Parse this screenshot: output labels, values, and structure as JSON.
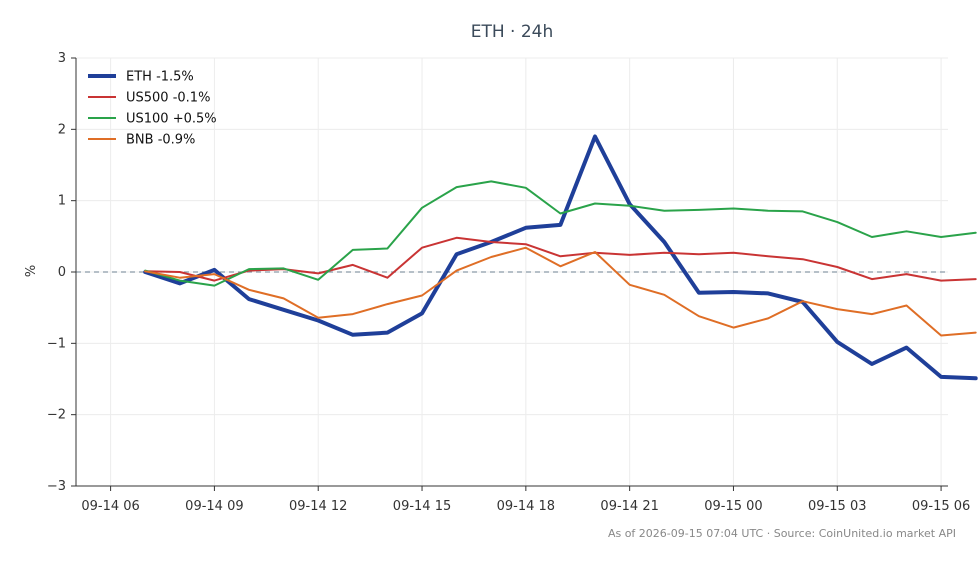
{
  "chart_data": {
    "type": "line",
    "title": "ETH · 24h",
    "xlabel": "",
    "ylabel": "%",
    "ylim": [
      -3,
      3
    ],
    "y_ticks": [
      -3,
      -2,
      -1,
      0,
      1,
      2,
      3
    ],
    "y_tick_labels": [
      "−3",
      "−2",
      "−1",
      "0",
      "1",
      "2",
      "3"
    ],
    "x_range_hours": [
      -1,
      24.2
    ],
    "x_ticks": [
      {
        "h": 0,
        "label": "09-14 06"
      },
      {
        "h": 3,
        "label": "09-14 09"
      },
      {
        "h": 6,
        "label": "09-14 12"
      },
      {
        "h": 9,
        "label": "09-14 15"
      },
      {
        "h": 12,
        "label": "09-14 18"
      },
      {
        "h": 15,
        "label": "09-14 21"
      },
      {
        "h": 18,
        "label": "09-15 00"
      },
      {
        "h": 21,
        "label": "09-15 03"
      },
      {
        "h": 24,
        "label": "09-15 06"
      }
    ],
    "grid": true,
    "zero_line": true,
    "legend_position": "top-left",
    "x": [
      "09-14 07",
      "09-14 08",
      "09-14 09",
      "09-14 10",
      "09-14 11",
      "09-14 12",
      "09-14 13",
      "09-14 14",
      "09-14 15",
      "09-14 16",
      "09-14 17",
      "09-14 18",
      "09-14 19",
      "09-14 20",
      "09-14 21",
      "09-14 22",
      "09-14 23",
      "09-15 00",
      "09-15 01",
      "09-15 02",
      "09-15 03",
      "09-15 04",
      "09-15 05",
      "09-15 06",
      "09-15 07"
    ],
    "series": [
      {
        "name": "ETH -1.5%",
        "color": "#1f3f99",
        "width": 4,
        "values": [
          0.0,
          -0.16,
          0.03,
          -0.38,
          -0.53,
          -0.68,
          -0.88,
          -0.85,
          -0.58,
          0.25,
          0.42,
          0.62,
          0.66,
          1.9,
          0.95,
          0.42,
          -0.29,
          -0.28,
          -0.3,
          -0.42,
          -0.98,
          -1.29,
          -1.06,
          -1.47,
          -1.49
        ]
      },
      {
        "name": "US500 -0.1%",
        "color": "#c93434",
        "width": 2,
        "values": [
          0.01,
          0.0,
          -0.12,
          0.02,
          0.04,
          -0.02,
          0.1,
          -0.08,
          0.34,
          0.48,
          0.42,
          0.39,
          0.22,
          0.27,
          0.24,
          0.27,
          0.25,
          0.27,
          0.22,
          0.18,
          0.07,
          -0.1,
          -0.03,
          -0.12,
          -0.1
        ]
      },
      {
        "name": "US100 +0.5%",
        "color": "#2aa34a",
        "width": 2,
        "values": [
          0.02,
          -0.12,
          -0.19,
          0.04,
          0.05,
          -0.11,
          0.31,
          0.33,
          0.9,
          1.19,
          1.27,
          1.18,
          0.82,
          0.96,
          0.93,
          0.86,
          0.87,
          0.89,
          0.86,
          0.85,
          0.7,
          0.49,
          0.57,
          0.49,
          0.55
        ]
      },
      {
        "name": "BNB -0.9%",
        "color": "#df6e26",
        "width": 2,
        "values": [
          0.01,
          -0.08,
          -0.03,
          -0.25,
          -0.37,
          -0.64,
          -0.59,
          -0.45,
          -0.33,
          0.02,
          0.21,
          0.34,
          0.08,
          0.28,
          -0.18,
          -0.32,
          -0.62,
          -0.78,
          -0.65,
          -0.41,
          -0.52,
          -0.59,
          -0.47,
          -0.89,
          -0.85
        ]
      }
    ]
  },
  "footer": {
    "source_text": "As of 2026-09-15 07:04 UTC · Source: CoinUnited.io market API"
  }
}
